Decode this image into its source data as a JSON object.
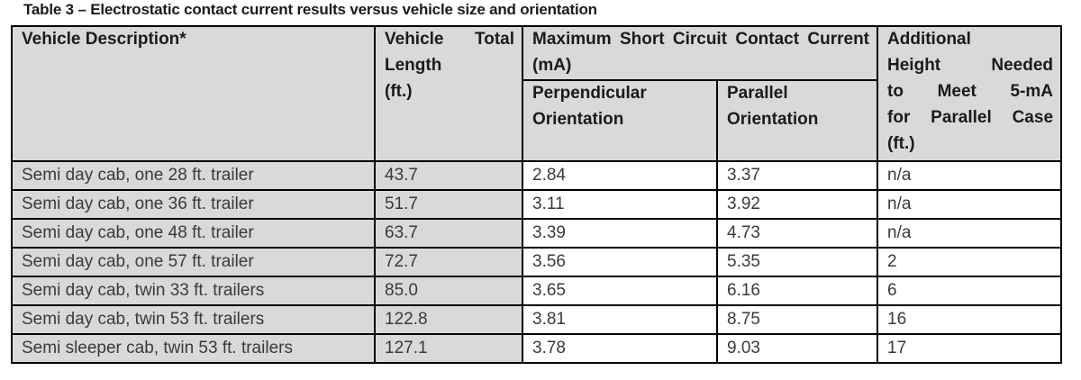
{
  "caption": "Table 3 – Electrostatic contact current results versus vehicle size and orientation",
  "colors": {
    "header_bg": "#d9d9d9",
    "shaded_column_bg": "#d9d9d9",
    "data_bg": "#ffffff",
    "border": "#000000"
  },
  "table": {
    "headers": {
      "vehicle_description": "Vehicle Description*",
      "vehicle_total_length": "Vehicle Total\nLength\n(ft.)",
      "max_short_circuit_group": "Maximum Short Circuit Contact Current (mA)",
      "perpendicular": "Perpendicular\nOrientation",
      "parallel": "Parallel\nOrientation",
      "additional_height": "Additional\nHeight Needed\nto Meet 5-mA\nfor Parallel Case\n(ft.)"
    },
    "rows": [
      {
        "description": "Semi day cab, one 28 ft. trailer",
        "length": "43.7",
        "perpendicular": "2.84",
        "parallel": "3.37",
        "additional_height": "n/a"
      },
      {
        "description": "Semi day cab, one 36 ft. trailer",
        "length": "51.7",
        "perpendicular": "3.11",
        "parallel": "3.92",
        "additional_height": "n/a"
      },
      {
        "description": "Semi day cab, one 48 ft. trailer",
        "length": "63.7",
        "perpendicular": "3.39",
        "parallel": "4.73",
        "additional_height": "n/a"
      },
      {
        "description": "Semi day cab, one 57 ft. trailer",
        "length": "72.7",
        "perpendicular": "3.56",
        "parallel": "5.35",
        "additional_height": "2"
      },
      {
        "description": "Semi day cab, twin 33 ft. trailers",
        "length": "85.0",
        "perpendicular": "3.65",
        "parallel": "6.16",
        "additional_height": "6"
      },
      {
        "description": "Semi day cab, twin 53 ft. trailers",
        "length": "122.8",
        "perpendicular": "3.81",
        "parallel": "8.75",
        "additional_height": "16"
      },
      {
        "description": "Semi sleeper cab, twin 53 ft. trailers",
        "length": "127.1",
        "perpendicular": "3.78",
        "parallel": "9.03",
        "additional_height": "17"
      }
    ]
  }
}
